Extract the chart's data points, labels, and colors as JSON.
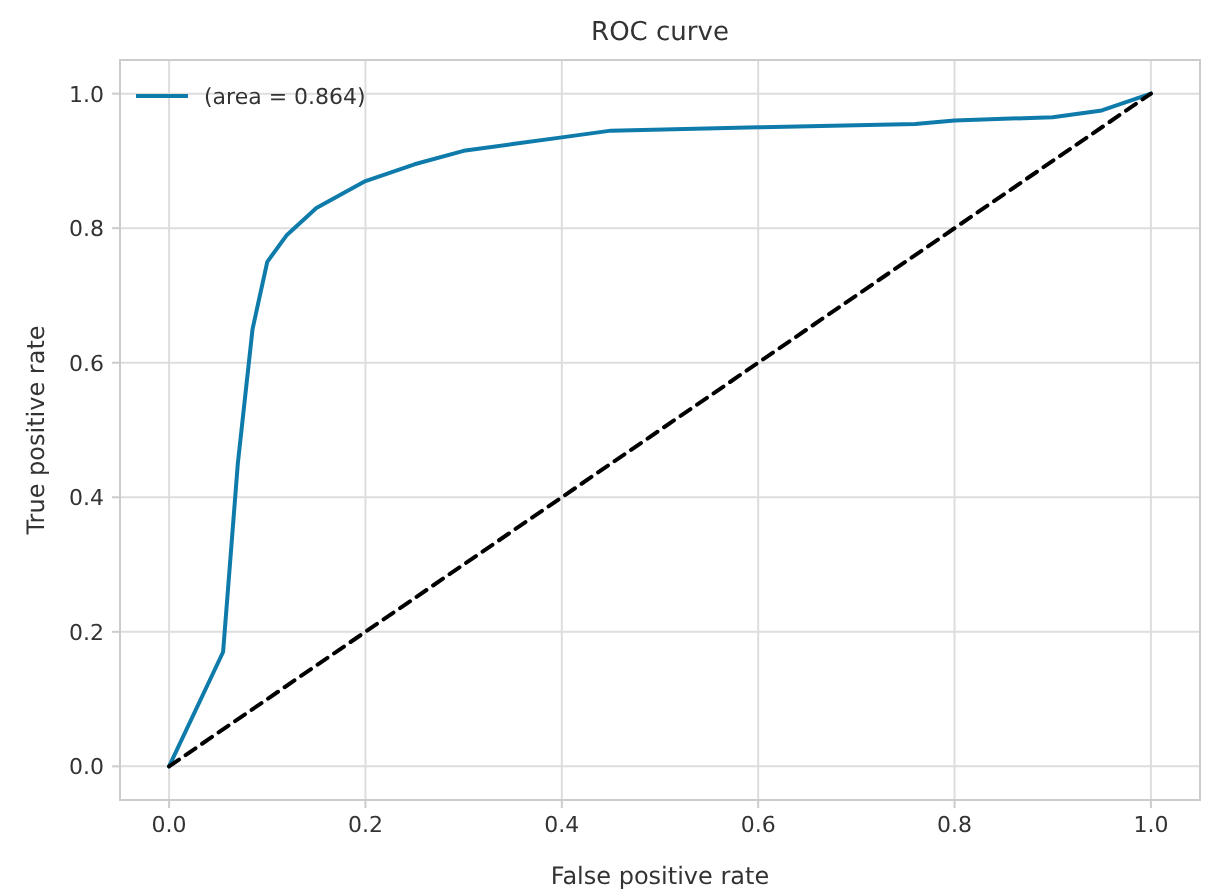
{
  "chart_data": {
    "type": "line",
    "title": "ROC curve",
    "xlabel": "False positive rate",
    "ylabel": "True positive rate",
    "xlim": [
      -0.05,
      1.05
    ],
    "ylim": [
      -0.05,
      1.05
    ],
    "xticks": [
      {
        "value": 0,
        "label": "0.0"
      },
      {
        "value": 0.2,
        "label": "0.2"
      },
      {
        "value": 0.4,
        "label": "0.4"
      },
      {
        "value": 0.6,
        "label": "0.6"
      },
      {
        "value": 0.8,
        "label": "0.8"
      },
      {
        "value": 1,
        "label": "1.0"
      }
    ],
    "yticks": [
      {
        "value": 0,
        "label": "0.0"
      },
      {
        "value": 0.2,
        "label": "0.2"
      },
      {
        "value": 0.4,
        "label": "0.4"
      },
      {
        "value": 0.6,
        "label": "0.6"
      },
      {
        "value": 0.8,
        "label": "0.8"
      },
      {
        "value": 1,
        "label": "1.0"
      }
    ],
    "grid": true,
    "legend": "top left",
    "series": [
      {
        "name": "(area = 0.864)",
        "color": "#0e7bab",
        "line_style": "solid",
        "x": [
          0,
          0.055,
          0.07,
          0.085,
          0.1,
          0.12,
          0.15,
          0.2,
          0.25,
          0.3,
          0.35,
          0.4,
          0.45,
          0.6,
          0.76,
          0.8,
          0.9,
          0.95,
          1
        ],
        "values": [
          0,
          0.17,
          0.45,
          0.65,
          0.75,
          0.79,
          0.83,
          0.87,
          0.895,
          0.915,
          0.925,
          0.935,
          0.945,
          0.95,
          0.955,
          0.96,
          0.965,
          0.975,
          1
        ]
      },
      {
        "color": "#000000",
        "line_style": "dashed",
        "x": [
          0,
          1
        ],
        "values": [
          0,
          1
        ]
      }
    ]
  }
}
